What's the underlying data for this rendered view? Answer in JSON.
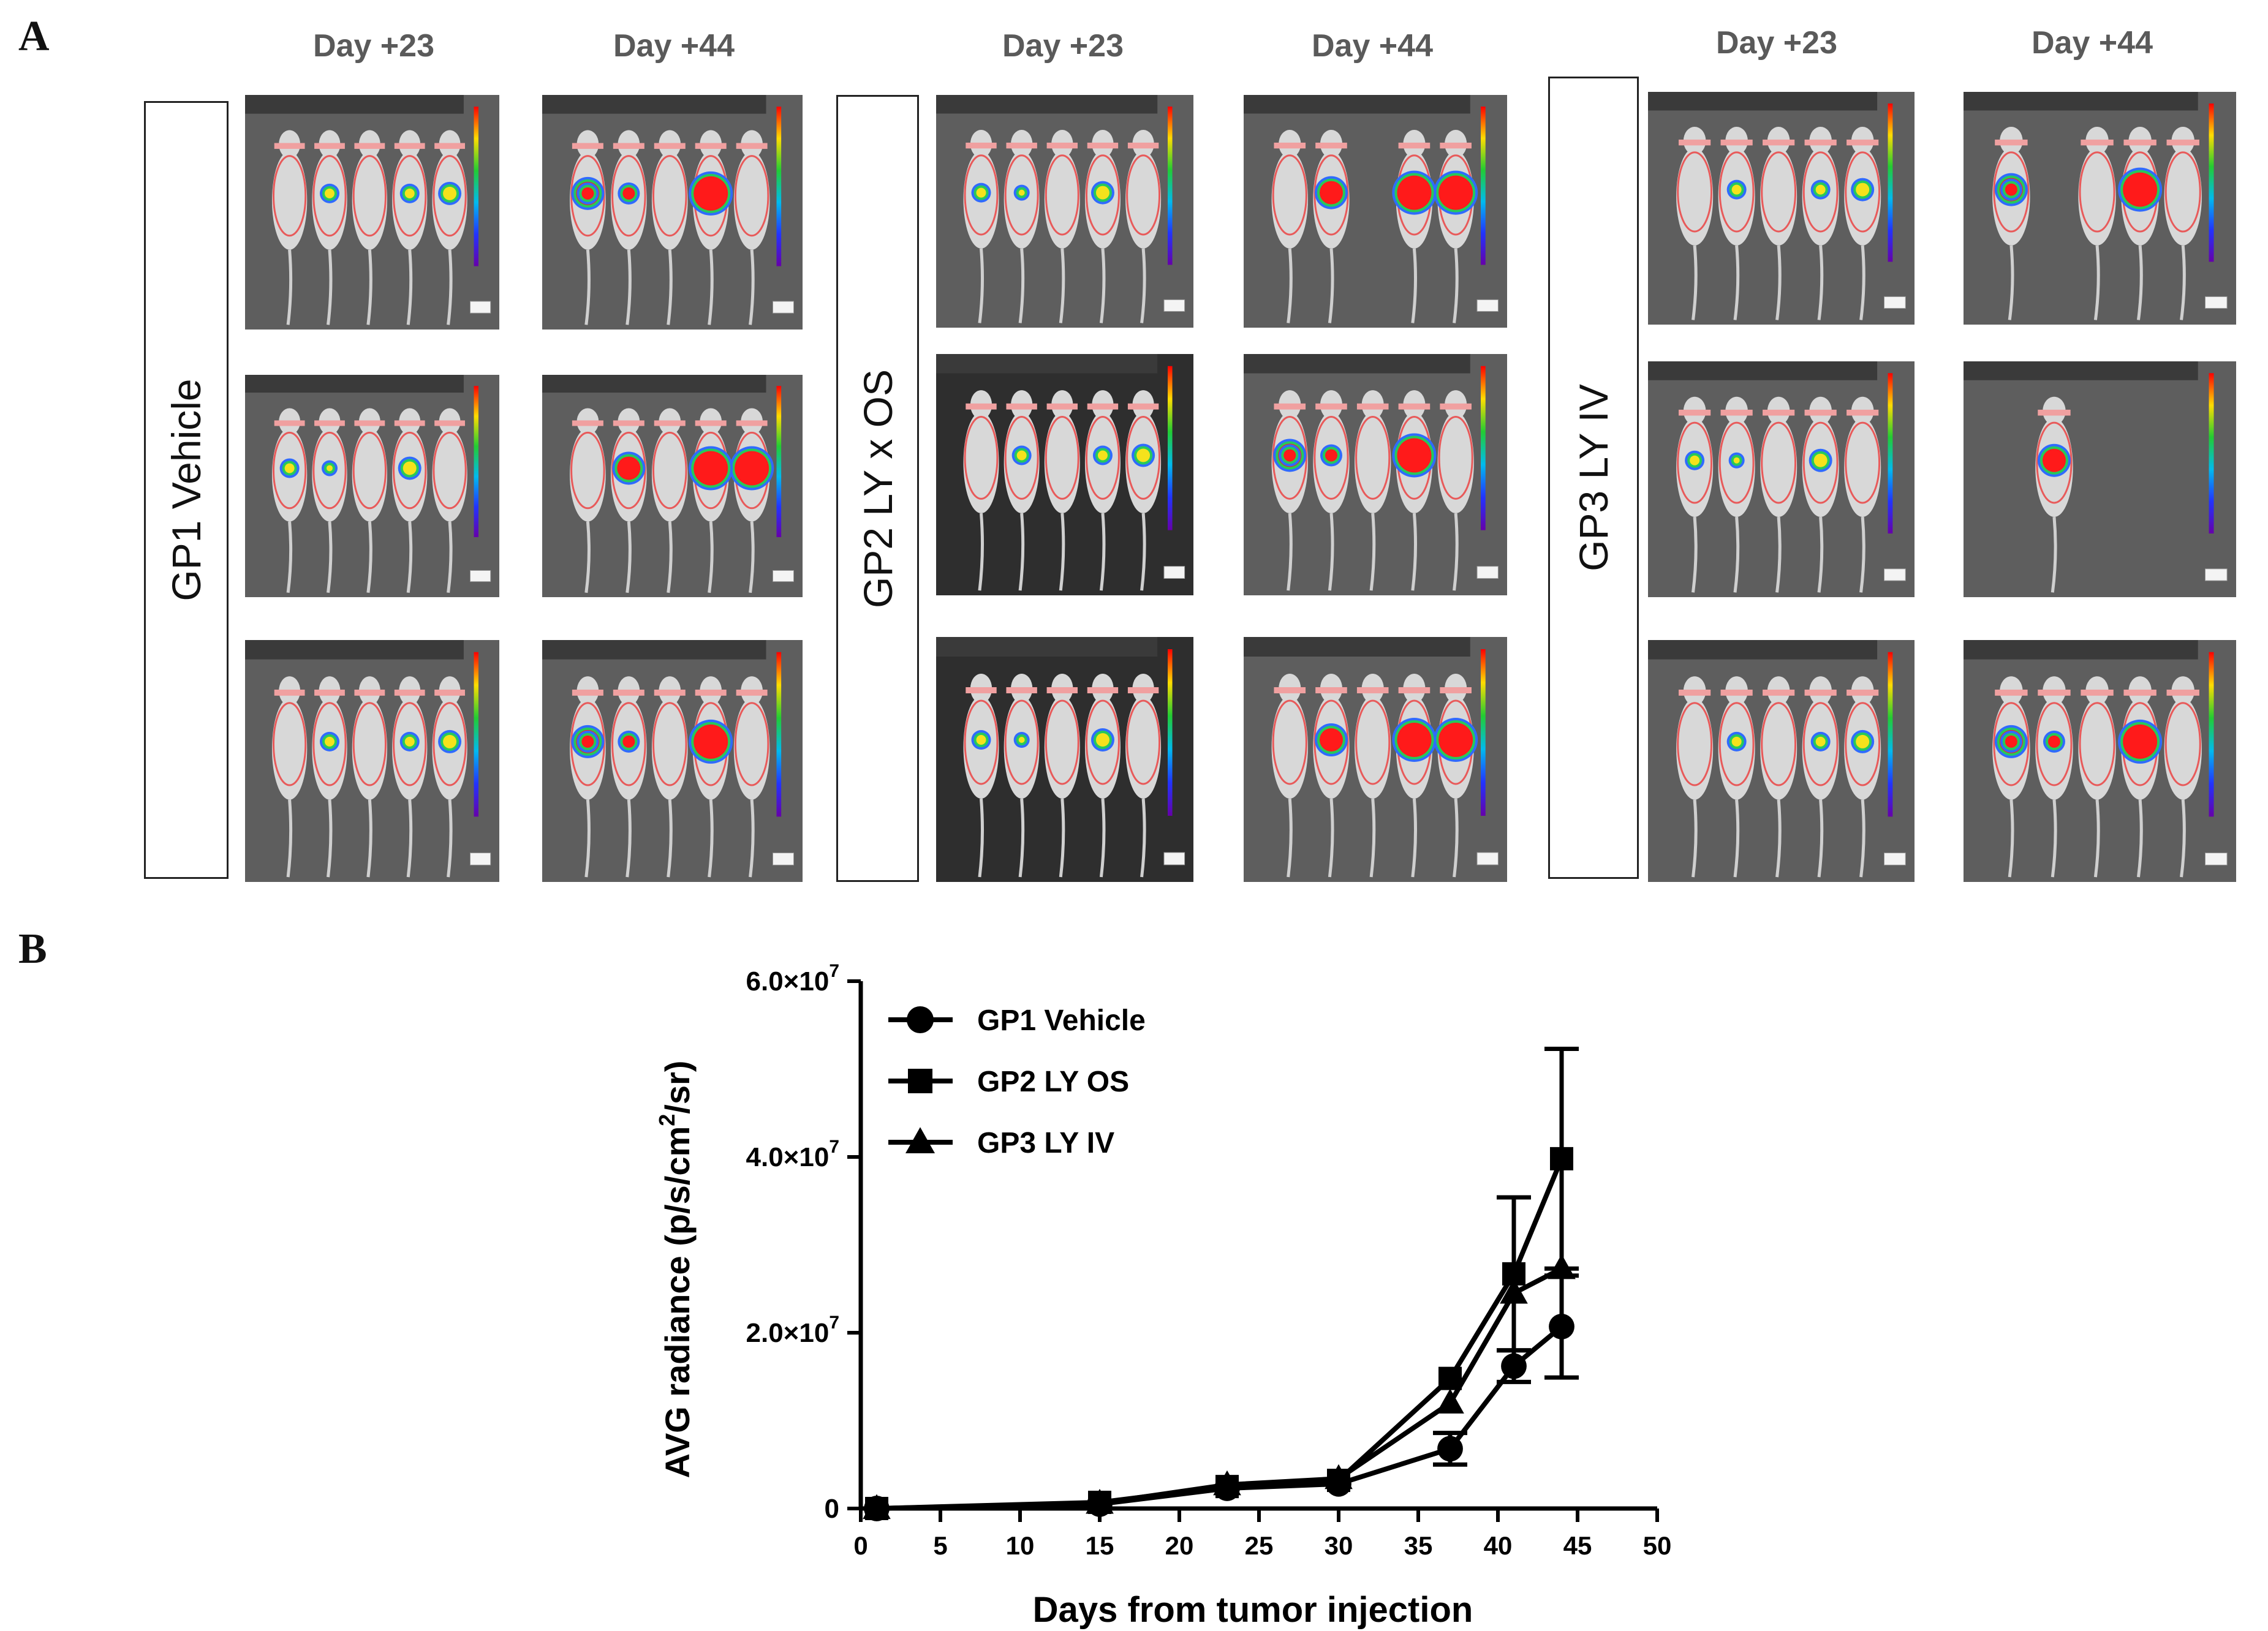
{
  "panel_a": {
    "letter": "A",
    "groups": [
      {
        "label": "GP1 Vehicle",
        "days": [
          "Day +23",
          "Day +44"
        ]
      },
      {
        "label": "GP2 LY x OS",
        "days": [
          "Day +23",
          "Day +44"
        ]
      },
      {
        "label": "GP3 LY IV",
        "days": [
          "Day +23",
          "Day +44"
        ]
      }
    ],
    "image_alt": "In vivo bioluminescence image of five mice, ventral view, with radiance color scale"
  },
  "panel_b": {
    "letter": "B"
  },
  "colors": {
    "line": "#000000",
    "bli_bg": "#5e5e5e",
    "mouse": "#d8d8d8",
    "roi": "#e85a5a"
  },
  "chart_data": {
    "type": "line",
    "title": "",
    "xlabel": "Days from tumor injection",
    "ylabel_main": "AVG radiance (p/s/cm",
    "ylabel_sup": "2",
    "ylabel_tail": "/sr)",
    "xlim": [
      0,
      50
    ],
    "ylim": [
      0,
      60000000
    ],
    "xticks": [
      "0",
      "5",
      "10",
      "15",
      "20",
      "25",
      "30",
      "35",
      "40",
      "45",
      "50"
    ],
    "yticks": [
      {
        "value": 0,
        "mantissa": "0",
        "exp": ""
      },
      {
        "value": 20000000,
        "mantissa": "2.0×10",
        "exp": "7"
      },
      {
        "value": 40000000,
        "mantissa": "4.0×10",
        "exp": "7"
      },
      {
        "value": 60000000,
        "mantissa": "6.0×10",
        "exp": "7"
      }
    ],
    "legend_position": "top-left",
    "series": [
      {
        "name": "GP1 Vehicle",
        "marker": "circle",
        "x": [
          1,
          15,
          23,
          30,
          37,
          41,
          44
        ],
        "y": [
          0,
          500000,
          2300000,
          2800000,
          6800000,
          16200000,
          20700000
        ],
        "err": [
          0,
          0,
          0,
          0,
          1800000,
          1800000,
          5800000
        ]
      },
      {
        "name": "GP2 LY OS",
        "marker": "square",
        "x": [
          1,
          15,
          23,
          30,
          37,
          41,
          44
        ],
        "y": [
          0,
          700000,
          2500000,
          3200000,
          14800000,
          26700000,
          39800000
        ],
        "err": [
          0,
          0,
          0,
          0,
          0,
          8700000,
          12500000
        ]
      },
      {
        "name": "GP3 LY IV",
        "marker": "triangle",
        "x": [
          1,
          15,
          23,
          30,
          37,
          41,
          44
        ],
        "y": [
          0,
          600000,
          2700000,
          3400000,
          12000000,
          24500000,
          27300000
        ],
        "err": [
          0,
          0,
          0,
          0,
          0,
          0,
          0
        ]
      }
    ]
  }
}
